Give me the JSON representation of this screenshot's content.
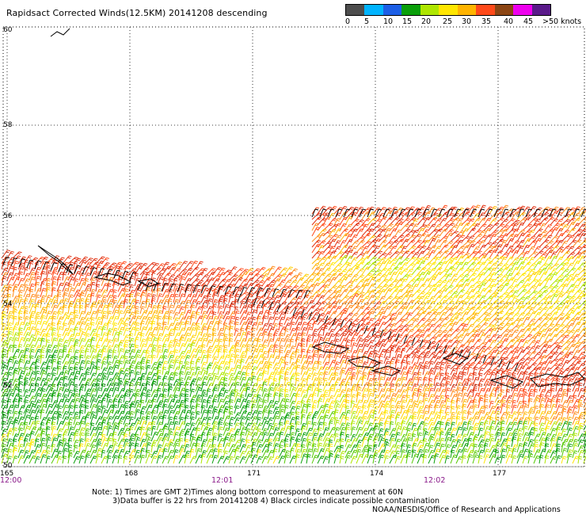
{
  "title": "Rapidsact Corrected Winds(12.5KM) 20141208 descending",
  "legend": {
    "labels": [
      "0",
      "5",
      "10",
      "15",
      "20",
      "25",
      "30",
      "35",
      "40",
      "45",
      ">50 knots"
    ],
    "colors": [
      "#4d4d4d",
      "#00b4ff",
      "#1c5fe6",
      "#0a9f0a",
      "#aee600",
      "#ffe600",
      "#ffb400",
      "#ff4a1a",
      "#8b4513",
      "#ee00ee",
      "#5a1a8a"
    ]
  },
  "map": {
    "lat_labels": [
      "60",
      "58",
      "56",
      "54",
      "52",
      "50"
    ],
    "lon_labels": [
      "165",
      "168",
      "171",
      "174",
      "177"
    ],
    "time_labels": [
      "12:00",
      "12:01",
      "12:02"
    ]
  },
  "notes": {
    "line1": "Note: 1) Times are GMT 2)Times along bottom correspond to measurement at 60N",
    "line2": "3)Data buffer is 22 hrs from 20141208 4) Black circles indicate possible contamination",
    "line3": "NOAA/NESDIS/Office of Research and Applications"
  }
}
